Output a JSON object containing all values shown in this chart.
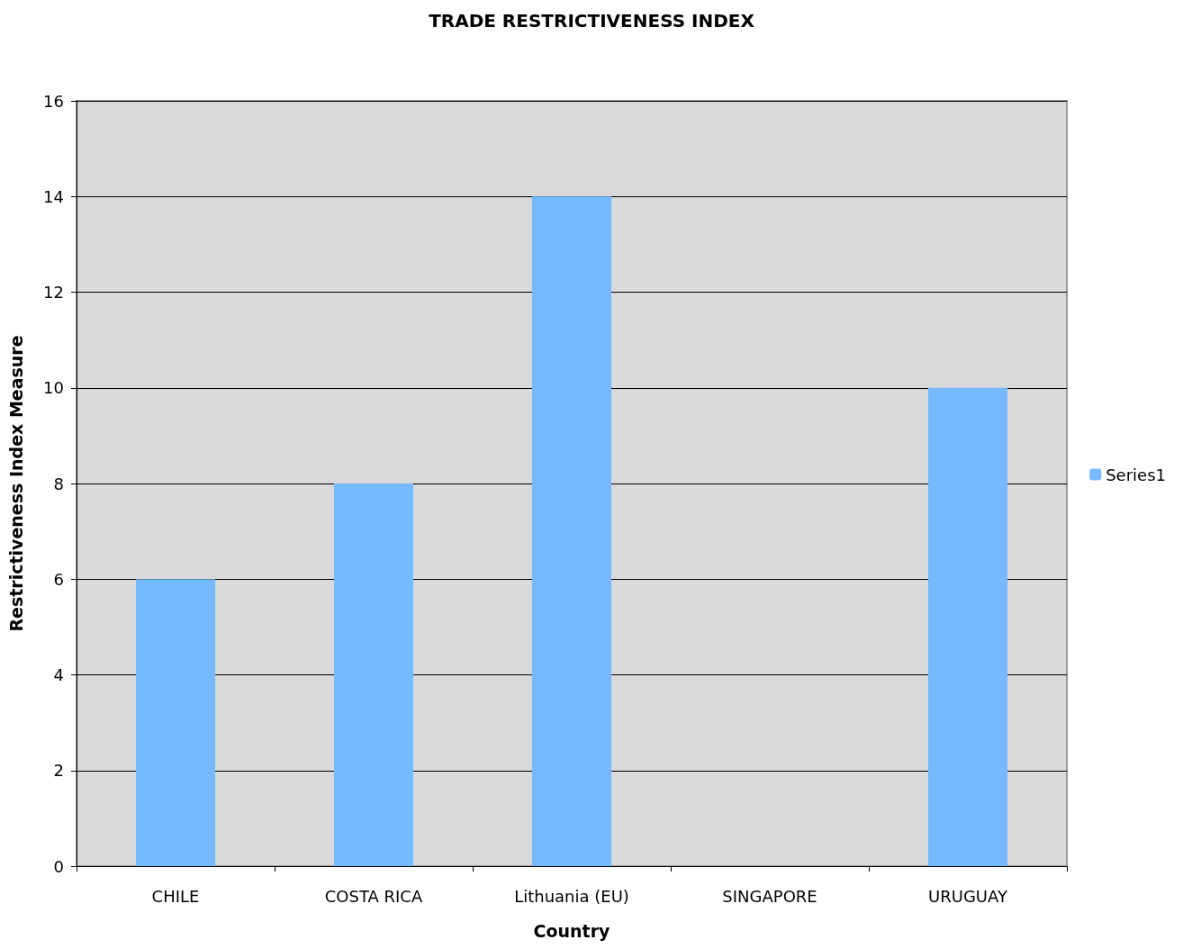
{
  "chart_data": {
    "type": "bar",
    "title": "TRADE RESTRICTIVENESS INDEX",
    "xlabel": "Country",
    "ylabel": "Restrictiveness Index Measure",
    "categories": [
      "CHILE",
      "COSTA RICA",
      "Lithuania (EU)",
      "SINGAPORE",
      "URUGUAY"
    ],
    "series": [
      {
        "name": "Series1",
        "color": "#75b9ff",
        "values": [
          6,
          8,
          14,
          0,
          10
        ]
      }
    ],
    "ylim": [
      0,
      16
    ],
    "yticks": [
      0,
      2,
      4,
      6,
      8,
      10,
      12,
      14,
      16
    ],
    "grid": "y",
    "legend": "right"
  }
}
